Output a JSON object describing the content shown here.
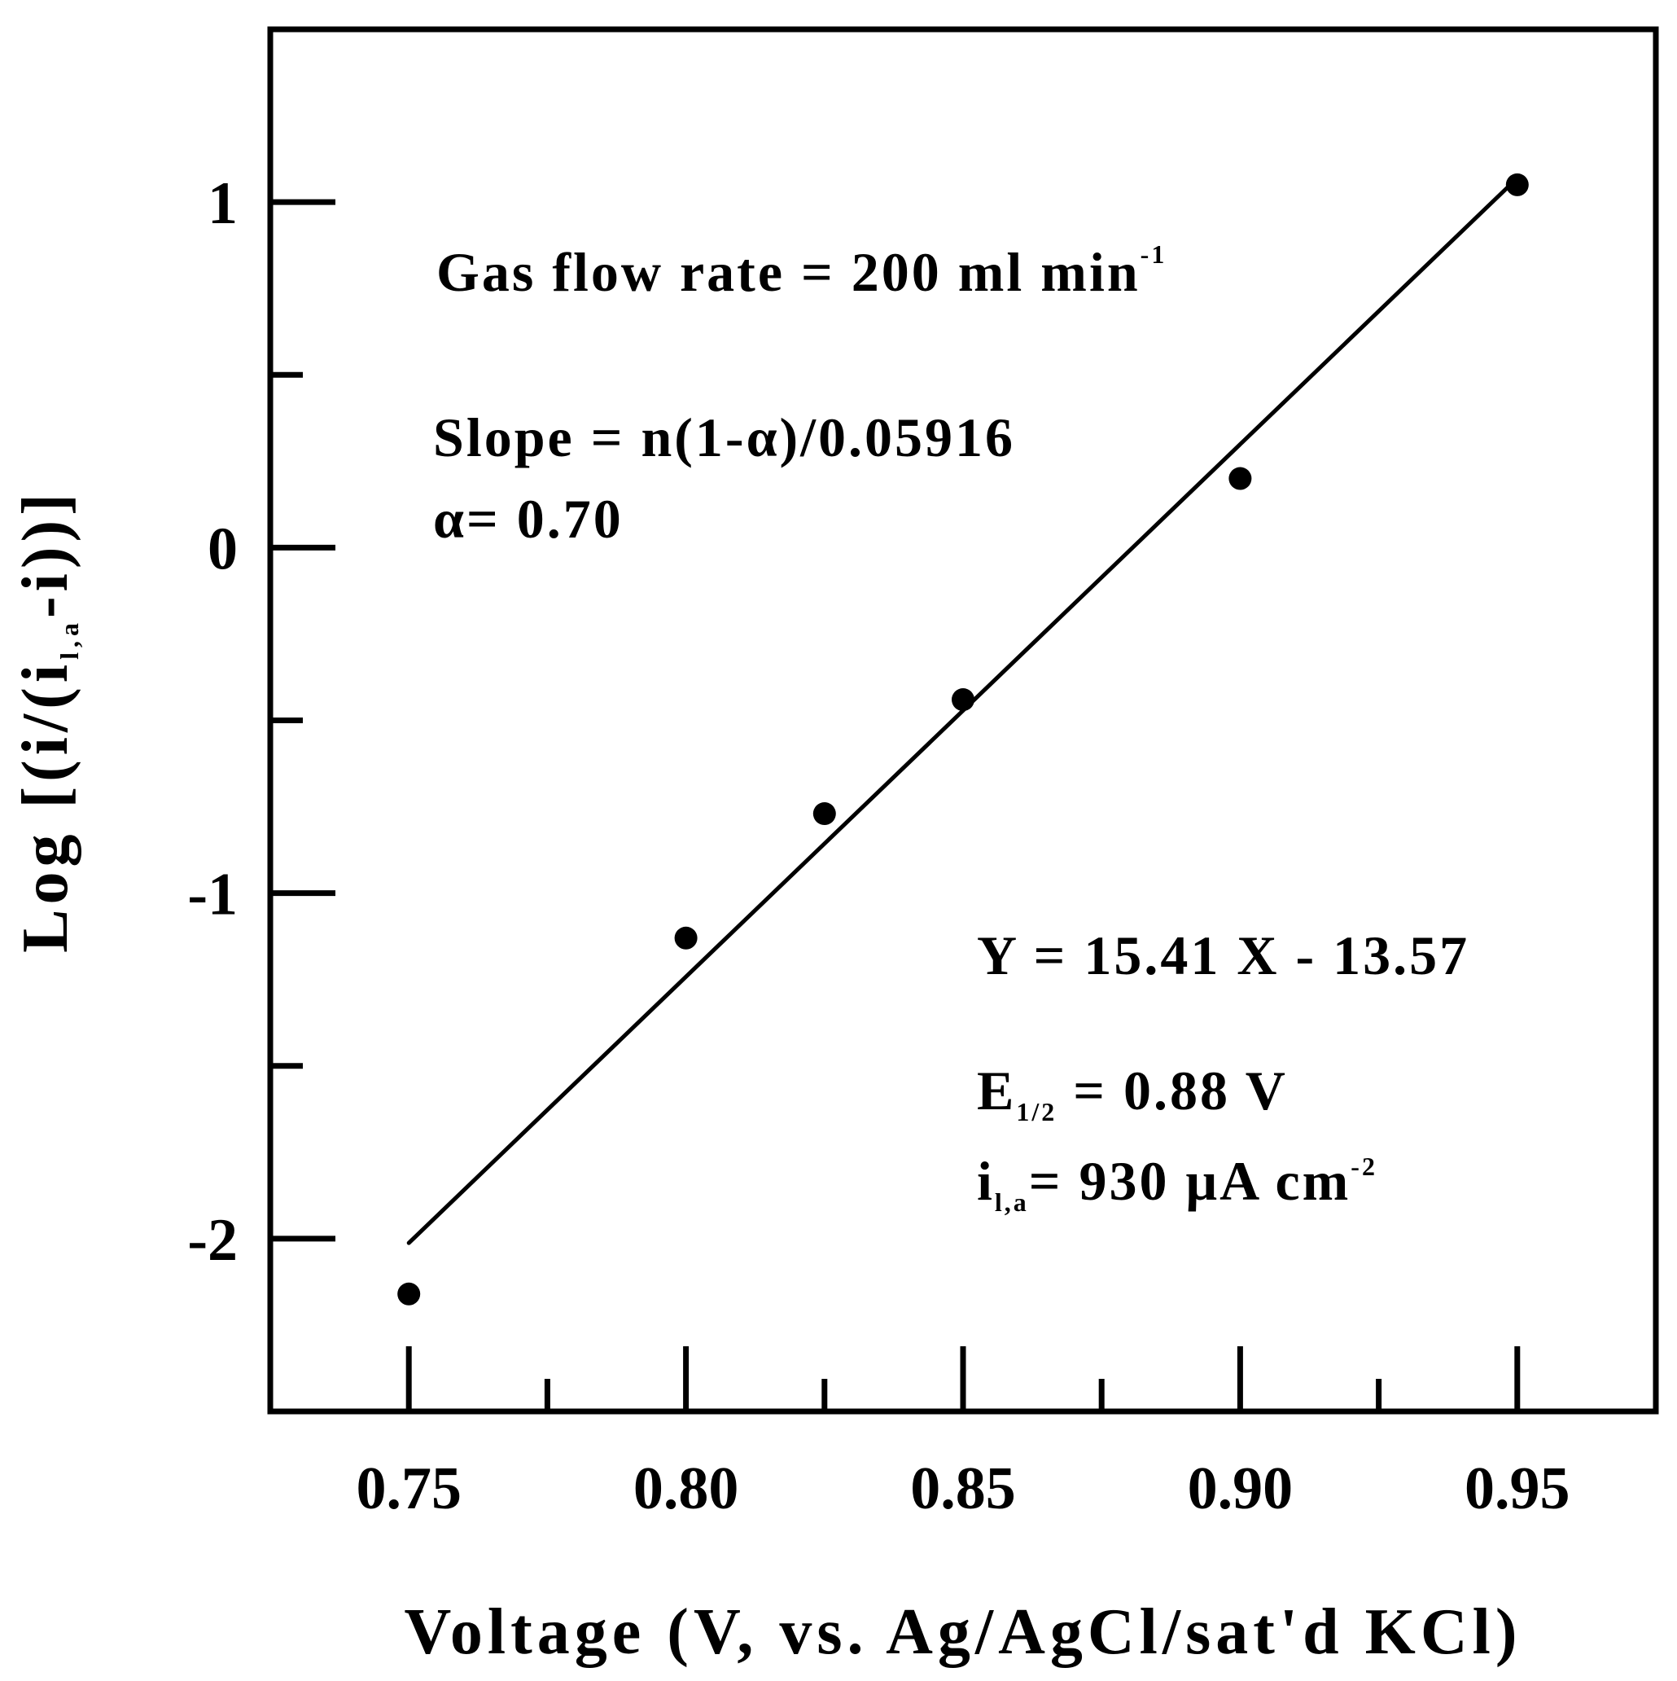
{
  "chart_data": {
    "type": "scatter",
    "xlabel": "Voltage (V, vs. Ag/AgCl/sat'd KCl)",
    "ylabel_parts": {
      "pre": "Log [(i/(i",
      "sub": "l,a",
      "post": "-i))]"
    },
    "xlim": [
      0.725,
      0.975
    ],
    "ylim": [
      -2.5,
      1.5
    ],
    "x_ticks": [
      {
        "value": 0.75,
        "label": "0.75"
      },
      {
        "value": 0.8,
        "label": "0.80"
      },
      {
        "value": 0.85,
        "label": "0.85"
      },
      {
        "value": 0.9,
        "label": "0.90"
      },
      {
        "value": 0.95,
        "label": "0.95"
      }
    ],
    "x_minor_ticks": [
      0.775,
      0.825,
      0.875,
      0.925
    ],
    "y_ticks": [
      {
        "value": 1,
        "label": "1"
      },
      {
        "value": 0,
        "label": "0"
      },
      {
        "value": -1,
        "label": "-1"
      },
      {
        "value": -2,
        "label": "-2"
      }
    ],
    "y_minor_ticks": [
      0.5,
      -0.5,
      -1.5
    ],
    "series": [
      {
        "x": [
          0.75,
          0.8,
          0.825,
          0.85,
          0.9,
          0.95
        ],
        "y": [
          -2.16,
          -1.13,
          -0.77,
          -0.44,
          0.2,
          1.05
        ]
      }
    ],
    "fit_line": {
      "slope": 15.41,
      "intercept": -13.57,
      "x_range": [
        0.75,
        0.95
      ]
    },
    "annotations": {
      "gas_flow": {
        "main": "Gas flow rate = 200 ml min",
        "sup": "-1"
      },
      "slope_eq": "Slope = n(1-α)/0.05916",
      "alpha": "α= 0.70",
      "fit_eq": "Y = 15.41 X - 13.57",
      "e_half": {
        "main": "E",
        "sub": "1/2",
        "rest": " = 0.88 V"
      },
      "il_a": {
        "main": "i",
        "sub": "l,a",
        "rest": "= 930 μA cm",
        "sup": "-2"
      }
    }
  }
}
